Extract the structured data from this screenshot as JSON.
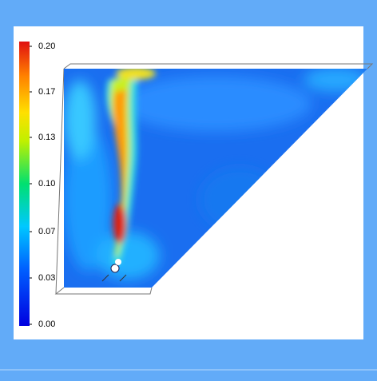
{
  "colorbar": {
    "labels": [
      "0.20",
      "0.17",
      "0.13",
      "0.10",
      "0.07",
      "0.03",
      "0.00"
    ]
  }
}
